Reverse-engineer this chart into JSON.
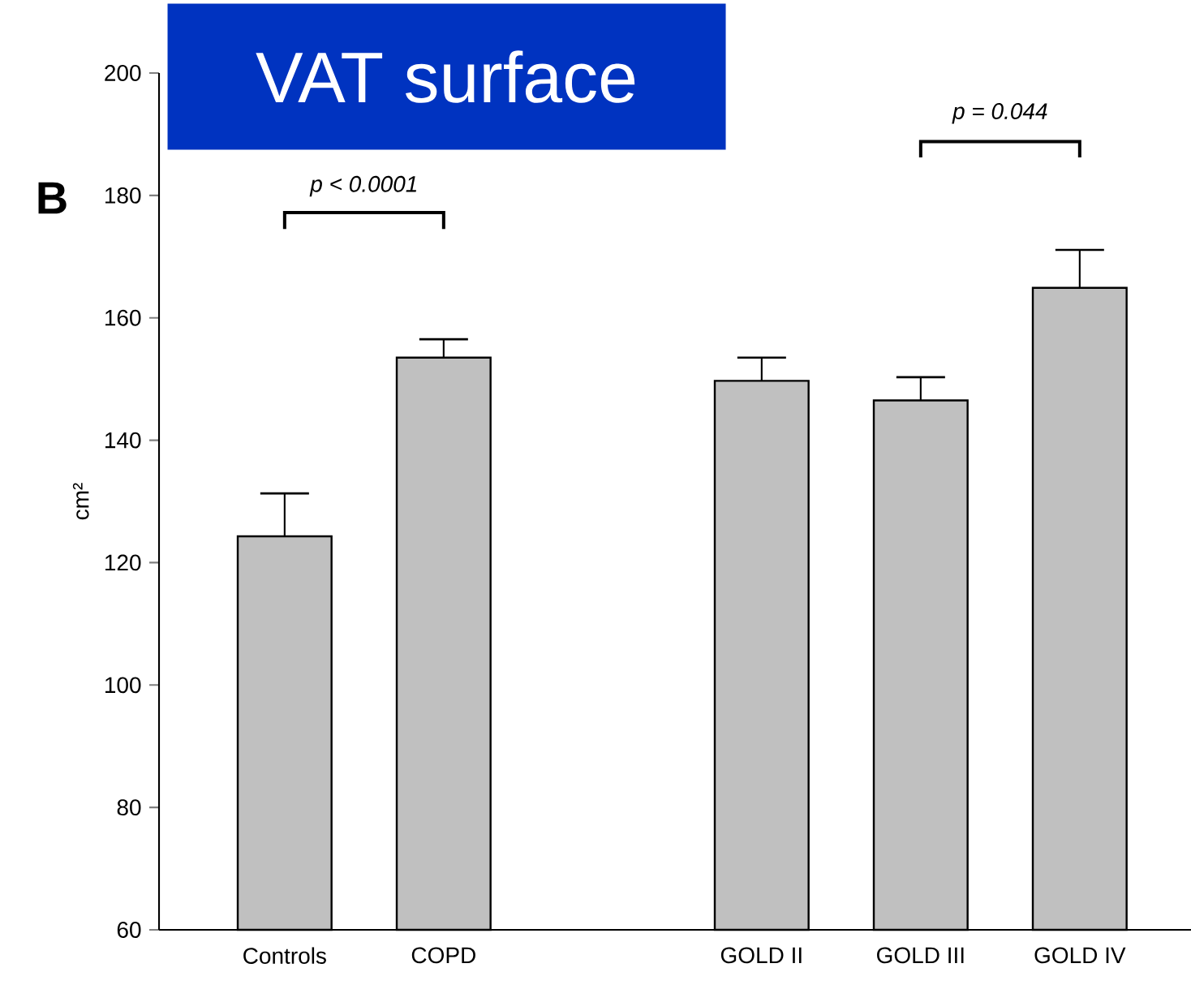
{
  "chart_data": {
    "type": "bar",
    "title": "VAT surface",
    "ylabel": "cm²",
    "categories": [
      "Controls",
      "COPD",
      null,
      "GOLD II",
      "GOLD III",
      "GOLD IV"
    ],
    "values": [
      124.3,
      153.5,
      null,
      149.7,
      146.5,
      164.9
    ],
    "errors": [
      7.0,
      3.0,
      null,
      3.8,
      3.8,
      6.2
    ],
    "color": "#c0c0c0",
    "ylim": [
      60,
      200
    ],
    "yticks": [
      60,
      80,
      100,
      120,
      140,
      160,
      180,
      200
    ],
    "annotations": [
      "B",
      "p < 0.0001",
      "p = 0.044"
    ]
  }
}
